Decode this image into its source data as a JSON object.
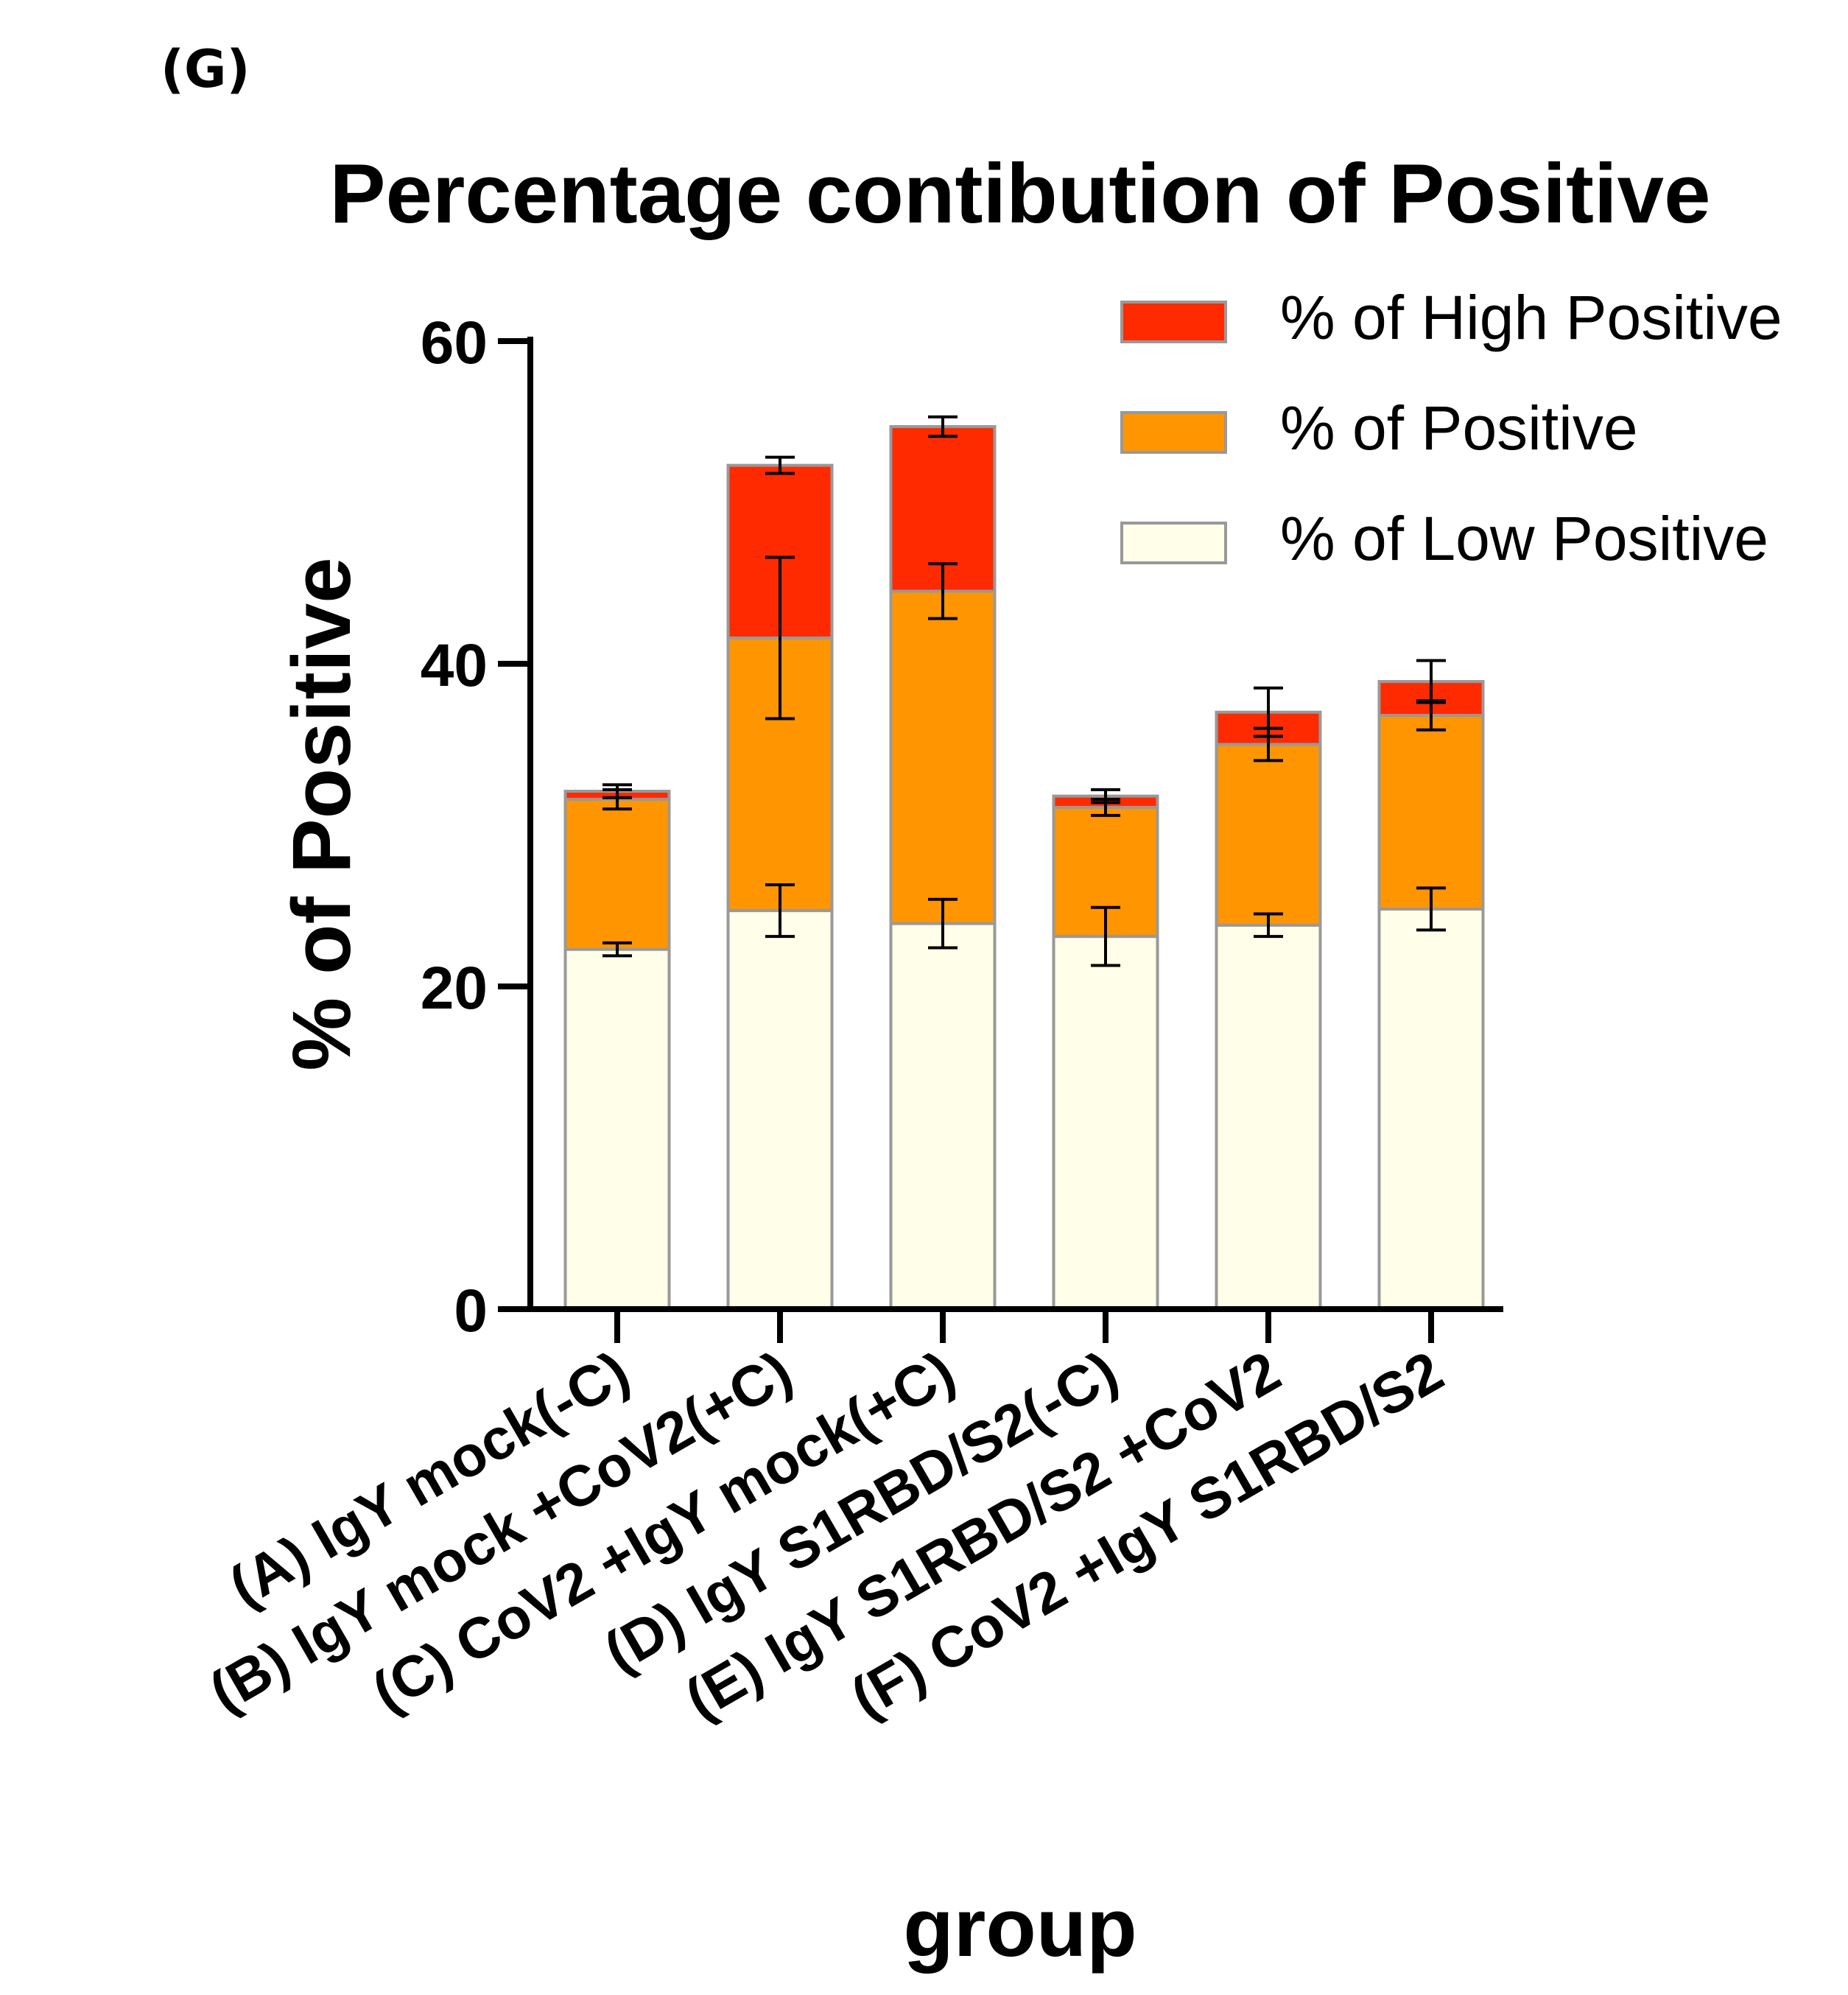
{
  "panel_label": "(G)",
  "chart_data": {
    "type": "bar",
    "stacked": true,
    "title": "Percentage contibution of Positive",
    "xlabel": "group",
    "ylabel": "% of  Positive",
    "ylim": [
      0,
      60
    ],
    "yticks": [
      0,
      20,
      40,
      60
    ],
    "grid": false,
    "legend_position": "top-right",
    "categories": [
      "(A) IgY mock(-C)",
      "(B) IgY mock +CoV2(+C)",
      "(C) CoV2 +IgY mock(+C)",
      "(D) IgY S1RBD/S2(-C)",
      "(E) IgY S1RBD/S2 +CoV2",
      "(F) CoV2 +IgY S1RBD/S2"
    ],
    "series": [
      {
        "name": "% of Low Positive",
        "color": "#FFFEE8",
        "values": [
          22.3,
          24.7,
          23.9,
          23.1,
          23.8,
          24.8
        ],
        "errors": [
          0.4,
          1.6,
          1.5,
          1.8,
          0.7,
          1.3
        ]
      },
      {
        "name": "% of Positive",
        "color": "#FF9500",
        "values": [
          9.3,
          16.9,
          20.6,
          8.0,
          11.2,
          12.0
        ],
        "errors": [
          0.6,
          5.0,
          1.7,
          0.5,
          1.0,
          0.9
        ]
      },
      {
        "name": "% of High Positive",
        "color": "#FF2A00",
        "values": [
          0.5,
          10.7,
          10.2,
          0.7,
          2.0,
          2.1
        ],
        "errors": [
          0.4,
          0.5,
          0.6,
          0.4,
          1.5,
          1.3
        ]
      }
    ],
    "legend_order": [
      "% of High Positive",
      "% of Positive",
      "% of Low Positive"
    ],
    "bar_outline_color": "#999999",
    "error_bar_color": "#000000"
  }
}
